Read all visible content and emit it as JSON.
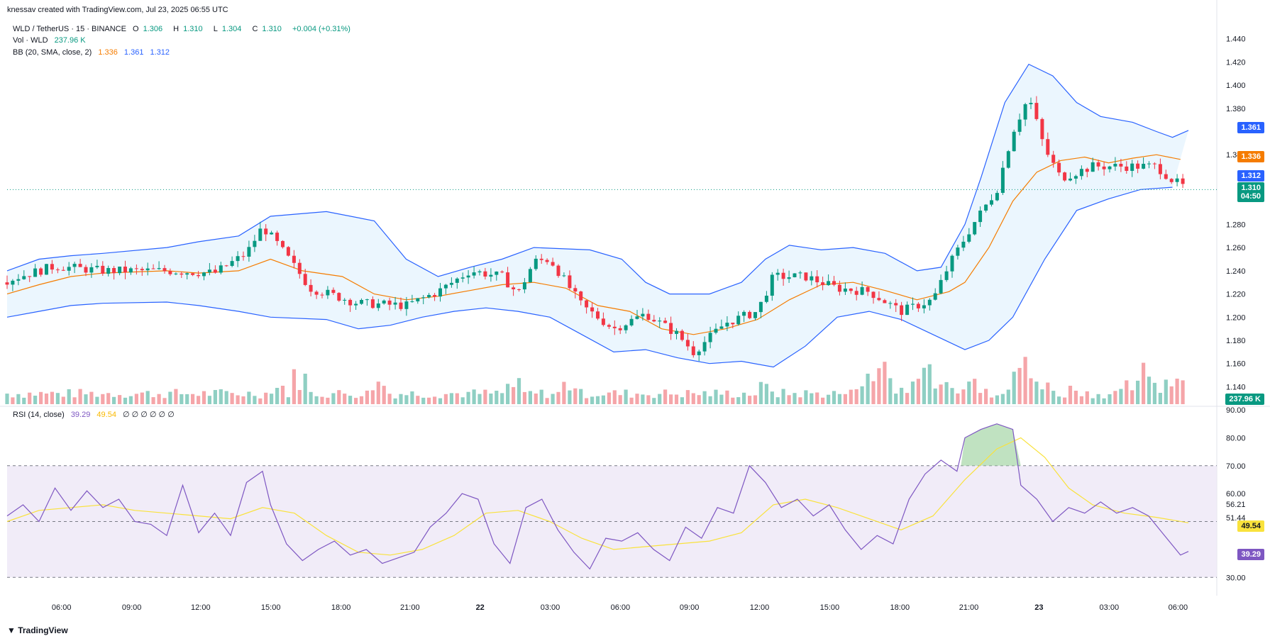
{
  "header": {
    "attribution": "knessav created with TradingView.com, Jul 23, 2025 06:55 UTC"
  },
  "legend": {
    "symbol": "WLD / TetherUS · 15 · BINANCE",
    "open_label": "O",
    "open": "1.306",
    "high_label": "H",
    "high": "1.310",
    "low_label": "L",
    "low": "1.304",
    "close_label": "C",
    "close": "1.310",
    "change": "+0.004 (+0.31%)",
    "vol_label": "Vol · WLD",
    "vol_value": "237.96 K",
    "bb_label": "BB (20, SMA, close, 2)",
    "bb_basis": "1.336",
    "bb_upper": "1.361",
    "bb_lower": "1.312",
    "rsi_label": "RSI (14, close)",
    "rsi_value": "39.29",
    "rsi_ma": "49.54",
    "rsi_nulls": "∅ ∅ ∅ ∅ ∅ ∅"
  },
  "badges": {
    "upper": "1.361",
    "basis": "1.336",
    "lower": "1.312",
    "price": "1.310",
    "countdown": "04:50",
    "volume": "237.96 K",
    "rsi_ma": "49.54",
    "rsi": "39.29"
  },
  "brand": "TradingView",
  "colors": {
    "up": "#089981",
    "down": "#f23645",
    "vol_up": "#8fcfc3",
    "vol_down": "#f5a5a9",
    "bb_band": "#2962ff",
    "bb_basis": "#f57c00",
    "bb_fill": "#e3f2fd",
    "rsi": "#7e57c2",
    "rsi_ma": "#f9e23c",
    "rsi_fill": "#ede7f6"
  },
  "chart_data": {
    "type": "candlestick",
    "price_axis": {
      "ticks": [
        "1.440",
        "1.420",
        "1.400",
        "1.380",
        "1.340",
        "1.280",
        "1.260",
        "1.240",
        "1.220",
        "1.200",
        "1.180",
        "1.160",
        "1.140"
      ],
      "range": [
        1.125,
        1.452
      ]
    },
    "rsi_axis": {
      "ticks": [
        "90.00",
        "80.00",
        "70.00",
        "60.00",
        "56.21",
        "51.44",
        "30.00"
      ],
      "range": [
        26,
        90
      ],
      "upper_band": 70,
      "lower_band": 30
    },
    "x_labels": [
      {
        "label": "06:00",
        "t": 0.045
      },
      {
        "label": "09:00",
        "t": 0.103
      },
      {
        "label": "12:00",
        "t": 0.16
      },
      {
        "label": "15:00",
        "t": 0.218
      },
      {
        "label": "18:00",
        "t": 0.276
      },
      {
        "label": "21:00",
        "t": 0.333
      },
      {
        "label": "22",
        "t": 0.391
      },
      {
        "label": "03:00",
        "t": 0.449
      },
      {
        "label": "06:00",
        "t": 0.507
      },
      {
        "label": "09:00",
        "t": 0.564
      },
      {
        "label": "12:00",
        "t": 0.622
      },
      {
        "label": "15:00",
        "t": 0.68
      },
      {
        "label": "18:00",
        "t": 0.738
      },
      {
        "label": "21:00",
        "t": 0.795
      },
      {
        "label": "23",
        "t": 0.853
      },
      {
        "label": "03:00",
        "t": 0.911
      },
      {
        "label": "06:00",
        "t": 0.968
      }
    ],
    "upper_band_pts": [
      [
        0,
        1.24
      ],
      [
        40,
        1.25
      ],
      [
        80,
        1.253
      ],
      [
        120,
        1.255
      ],
      [
        200,
        1.26
      ],
      [
        240,
        1.265
      ],
      [
        290,
        1.27
      ],
      [
        330,
        1.287
      ],
      [
        400,
        1.291
      ],
      [
        460,
        1.283
      ],
      [
        500,
        1.25
      ],
      [
        540,
        1.235
      ],
      [
        580,
        1.243
      ],
      [
        620,
        1.25
      ],
      [
        660,
        1.26
      ],
      [
        730,
        1.258
      ],
      [
        770,
        1.25
      ],
      [
        800,
        1.23
      ],
      [
        830,
        1.22
      ],
      [
        880,
        1.22
      ],
      [
        920,
        1.23
      ],
      [
        950,
        1.25
      ],
      [
        980,
        1.262
      ],
      [
        1020,
        1.258
      ],
      [
        1060,
        1.26
      ],
      [
        1100,
        1.255
      ],
      [
        1140,
        1.24
      ],
      [
        1170,
        1.243
      ],
      [
        1200,
        1.28
      ],
      [
        1220,
        1.32
      ],
      [
        1250,
        1.385
      ],
      [
        1280,
        1.418
      ],
      [
        1310,
        1.408
      ],
      [
        1340,
        1.385
      ],
      [
        1370,
        1.373
      ],
      [
        1410,
        1.368
      ],
      [
        1440,
        1.36
      ],
      [
        1460,
        1.355
      ],
      [
        1480,
        1.361
      ]
    ],
    "lower_band_pts": [
      [
        0,
        1.2
      ],
      [
        40,
        1.205
      ],
      [
        80,
        1.21
      ],
      [
        120,
        1.212
      ],
      [
        200,
        1.213
      ],
      [
        240,
        1.21
      ],
      [
        290,
        1.205
      ],
      [
        330,
        1.2
      ],
      [
        400,
        1.198
      ],
      [
        440,
        1.19
      ],
      [
        480,
        1.193
      ],
      [
        520,
        1.2
      ],
      [
        560,
        1.205
      ],
      [
        600,
        1.208
      ],
      [
        640,
        1.205
      ],
      [
        680,
        1.2
      ],
      [
        720,
        1.185
      ],
      [
        760,
        1.17
      ],
      [
        800,
        1.172
      ],
      [
        840,
        1.165
      ],
      [
        880,
        1.16
      ],
      [
        920,
        1.162
      ],
      [
        960,
        1.157
      ],
      [
        1000,
        1.175
      ],
      [
        1040,
        1.2
      ],
      [
        1080,
        1.205
      ],
      [
        1120,
        1.198
      ],
      [
        1160,
        1.185
      ],
      [
        1200,
        1.172
      ],
      [
        1230,
        1.18
      ],
      [
        1260,
        1.2
      ],
      [
        1300,
        1.25
      ],
      [
        1340,
        1.292
      ],
      [
        1380,
        1.302
      ],
      [
        1420,
        1.31
      ],
      [
        1460,
        1.312
      ]
    ],
    "basis_pts": [
      [
        0,
        1.22
      ],
      [
        40,
        1.228
      ],
      [
        80,
        1.235
      ],
      [
        120,
        1.238
      ],
      [
        200,
        1.24
      ],
      [
        240,
        1.238
      ],
      [
        290,
        1.24
      ],
      [
        330,
        1.25
      ],
      [
        370,
        1.24
      ],
      [
        420,
        1.235
      ],
      [
        460,
        1.22
      ],
      [
        500,
        1.215
      ],
      [
        540,
        1.218
      ],
      [
        580,
        1.223
      ],
      [
        620,
        1.228
      ],
      [
        660,
        1.23
      ],
      [
        700,
        1.225
      ],
      [
        740,
        1.21
      ],
      [
        780,
        1.205
      ],
      [
        820,
        1.19
      ],
      [
        860,
        1.185
      ],
      [
        900,
        1.19
      ],
      [
        940,
        1.198
      ],
      [
        980,
        1.215
      ],
      [
        1020,
        1.228
      ],
      [
        1060,
        1.23
      ],
      [
        1100,
        1.223
      ],
      [
        1140,
        1.215
      ],
      [
        1180,
        1.222
      ],
      [
        1200,
        1.23
      ],
      [
        1230,
        1.26
      ],
      [
        1260,
        1.3
      ],
      [
        1290,
        1.325
      ],
      [
        1320,
        1.335
      ],
      [
        1350,
        1.338
      ],
      [
        1380,
        1.333
      ],
      [
        1410,
        1.337
      ],
      [
        1440,
        1.34
      ],
      [
        1470,
        1.336
      ]
    ],
    "rsi_pts": [
      [
        0,
        52
      ],
      [
        20,
        56
      ],
      [
        40,
        50
      ],
      [
        60,
        62
      ],
      [
        80,
        54
      ],
      [
        100,
        61
      ],
      [
        120,
        55
      ],
      [
        140,
        58
      ],
      [
        160,
        50
      ],
      [
        180,
        49
      ],
      [
        200,
        45
      ],
      [
        220,
        63
      ],
      [
        240,
        46
      ],
      [
        260,
        53
      ],
      [
        280,
        45
      ],
      [
        300,
        64
      ],
      [
        320,
        68
      ],
      [
        330,
        56
      ],
      [
        350,
        42
      ],
      [
        370,
        36
      ],
      [
        390,
        40
      ],
      [
        410,
        43
      ],
      [
        430,
        38
      ],
      [
        450,
        40
      ],
      [
        470,
        35
      ],
      [
        490,
        37
      ],
      [
        510,
        39
      ],
      [
        530,
        48
      ],
      [
        550,
        53
      ],
      [
        570,
        60
      ],
      [
        590,
        58
      ],
      [
        610,
        42
      ],
      [
        630,
        35
      ],
      [
        650,
        55
      ],
      [
        670,
        58
      ],
      [
        690,
        47
      ],
      [
        710,
        39
      ],
      [
        730,
        33
      ],
      [
        750,
        44
      ],
      [
        770,
        43
      ],
      [
        790,
        46
      ],
      [
        810,
        40
      ],
      [
        830,
        36
      ],
      [
        850,
        48
      ],
      [
        870,
        44
      ],
      [
        890,
        55
      ],
      [
        910,
        53
      ],
      [
        930,
        70
      ],
      [
        950,
        64
      ],
      [
        970,
        55
      ],
      [
        990,
        58
      ],
      [
        1010,
        52
      ],
      [
        1030,
        56
      ],
      [
        1050,
        47
      ],
      [
        1070,
        40
      ],
      [
        1090,
        45
      ],
      [
        1110,
        42
      ],
      [
        1130,
        58
      ],
      [
        1150,
        67
      ],
      [
        1170,
        72
      ],
      [
        1190,
        68
      ],
      [
        1200,
        80
      ],
      [
        1220,
        83
      ],
      [
        1240,
        85
      ],
      [
        1260,
        83
      ],
      [
        1270,
        63
      ],
      [
        1290,
        58
      ],
      [
        1310,
        50
      ],
      [
        1330,
        55
      ],
      [
        1350,
        53
      ],
      [
        1370,
        57
      ],
      [
        1390,
        53
      ],
      [
        1410,
        55
      ],
      [
        1430,
        52
      ],
      [
        1450,
        45
      ],
      [
        1470,
        38
      ],
      [
        1480,
        39.29
      ]
    ],
    "rsi_ma_pts": [
      [
        0,
        50
      ],
      [
        40,
        54
      ],
      [
        80,
        55
      ],
      [
        120,
        56
      ],
      [
        160,
        54
      ],
      [
        200,
        53
      ],
      [
        240,
        52
      ],
      [
        280,
        51
      ],
      [
        320,
        55
      ],
      [
        360,
        53
      ],
      [
        400,
        45
      ],
      [
        440,
        39
      ],
      [
        480,
        38
      ],
      [
        520,
        40
      ],
      [
        560,
        45
      ],
      [
        600,
        53
      ],
      [
        640,
        54
      ],
      [
        680,
        50
      ],
      [
        720,
        44
      ],
      [
        760,
        40
      ],
      [
        800,
        41
      ],
      [
        840,
        42
      ],
      [
        880,
        43
      ],
      [
        920,
        46
      ],
      [
        960,
        56
      ],
      [
        1000,
        58
      ],
      [
        1040,
        55
      ],
      [
        1080,
        51
      ],
      [
        1120,
        47
      ],
      [
        1160,
        52
      ],
      [
        1200,
        65
      ],
      [
        1240,
        76
      ],
      [
        1270,
        80
      ],
      [
        1300,
        73
      ],
      [
        1330,
        62
      ],
      [
        1360,
        56
      ],
      [
        1400,
        53
      ],
      [
        1440,
        51.5
      ],
      [
        1480,
        49.54
      ]
    ]
  }
}
